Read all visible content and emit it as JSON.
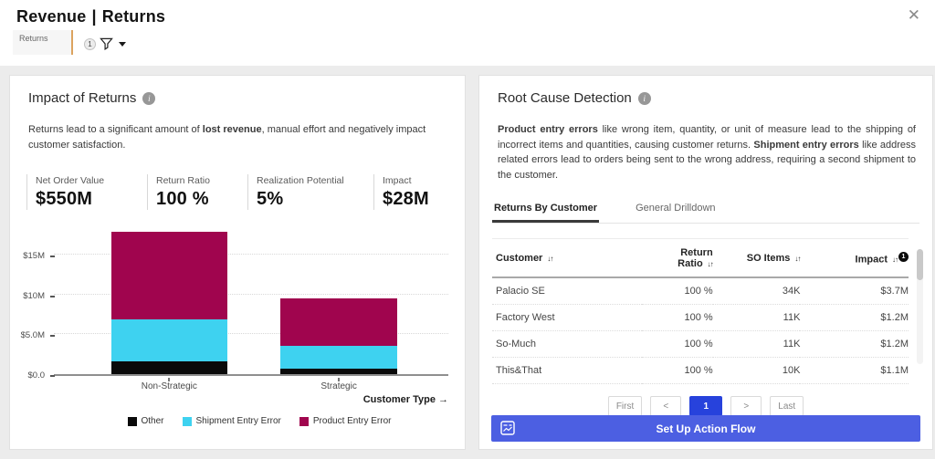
{
  "header": {
    "title_primary": "Revenue",
    "title_separator": "|",
    "title_secondary": "Returns",
    "close_glyph": "✕",
    "view_tab_label": "Returns",
    "filter_count": "1"
  },
  "ui": {
    "info_glyph": "i"
  },
  "impact_panel": {
    "title": "Impact of Returns",
    "desc": {
      "t1": "Returns lead to a significant amount of ",
      "b1": "lost revenue",
      "t2": ", manual effort and negatively impact customer satisfaction."
    },
    "kpis": [
      {
        "label": "Net Order Value",
        "value": "$550M"
      },
      {
        "label": "Return Ratio",
        "value": "100 %"
      },
      {
        "label": "Realization Potential",
        "value": "5%"
      },
      {
        "label": "Impact",
        "value": "$28M"
      }
    ]
  },
  "chart_data": {
    "type": "bar",
    "stacked": true,
    "categories": [
      "Non-Strategic",
      "Strategic"
    ],
    "series": [
      {
        "name": "Other",
        "color": "#0a0a0a",
        "values": [
          1.6,
          0.7
        ]
      },
      {
        "name": "Shipment Entry Error",
        "color": "#3ed2f0",
        "values": [
          5.3,
          2.9
        ]
      },
      {
        "name": "Product Entry Error",
        "color": "#a0054e",
        "values": [
          10.9,
          5.9
        ]
      }
    ],
    "value_unit": "USD millions",
    "xlabel": "Customer Type",
    "xlabel_display": "Customer Type →",
    "ylim": [
      0,
      18.75
    ],
    "yticks": [
      {
        "v": 0,
        "label": "$0.0"
      },
      {
        "v": 5,
        "label": "$5.0M"
      },
      {
        "v": 10,
        "label": "$10M"
      },
      {
        "v": 15,
        "label": "$15M"
      }
    ],
    "grid": "dotted-horizontal",
    "legend_position": "bottom"
  },
  "root_panel": {
    "title": "Root Cause Detection",
    "desc": {
      "b1": "Product entry errors",
      "t1": " like wrong item, quantity, or unit of measure lead to the shipping of incorrect items and quantities, causing customer returns. ",
      "b2": "Shipment entry errors",
      "t2": " like address related errors lead to orders being sent to the wrong address, requiring a second shipment to the customer."
    },
    "tabs": [
      {
        "label": "Returns By Customer",
        "active": true
      },
      {
        "label": "General Drilldown",
        "active": false
      }
    ],
    "table": {
      "columns": [
        {
          "label": "Customer",
          "sort_icon": "↓↑"
        },
        {
          "label": "Return Ratio",
          "sort_icon": "↓↑"
        },
        {
          "label": "SO Items",
          "sort_icon": "↓↑"
        },
        {
          "label": "Impact",
          "sort_icon": "↓↑",
          "badge": "1"
        }
      ],
      "rows": [
        [
          "Palacio SE",
          "100 %",
          "34K",
          "$3.7M"
        ],
        [
          "Factory West",
          "100 %",
          "11K",
          "$1.2M"
        ],
        [
          "So-Much",
          "100 %",
          "11K",
          "$1.2M"
        ],
        [
          "This&That",
          "100 %",
          "10K",
          "$1.1M"
        ]
      ]
    },
    "pagination": {
      "first": "First",
      "prev": "<",
      "page": "1",
      "next": ">",
      "last": "Last"
    },
    "action_button": {
      "label": "Set Up Action Flow"
    }
  },
  "colors": {
    "pagination_active_blue": "#2742dc",
    "action_button_blue": "#4c5fe2",
    "tab_chip_accent_orange": "#dca35f",
    "bar_other": "#0a0a0a",
    "bar_shipment_entry_error": "#3ed2f0",
    "bar_product_entry_error": "#a0054e"
  }
}
